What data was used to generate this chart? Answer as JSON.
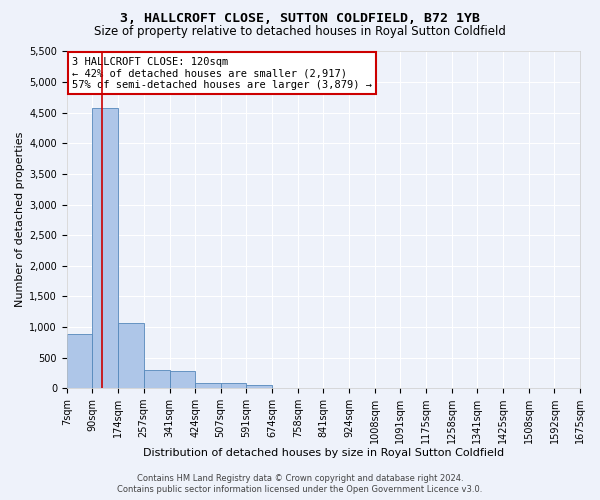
{
  "title_line1": "3, HALLCROFT CLOSE, SUTTON COLDFIELD, B72 1YB",
  "title_line2": "Size of property relative to detached houses in Royal Sutton Coldfield",
  "xlabel": "Distribution of detached houses by size in Royal Sutton Coldfield",
  "ylabel": "Number of detached properties",
  "footer_line1": "Contains HM Land Registry data © Crown copyright and database right 2024.",
  "footer_line2": "Contains public sector information licensed under the Open Government Licence v3.0.",
  "annotation_title": "3 HALLCROFT CLOSE: 120sqm",
  "annotation_line2": "← 42% of detached houses are smaller (2,917)",
  "annotation_line3": "57% of semi-detached houses are larger (3,879) →",
  "bins": [
    7,
    90,
    174,
    257,
    341,
    424,
    507,
    591,
    674,
    758,
    841,
    924,
    1008,
    1091,
    1175,
    1258,
    1341,
    1425,
    1508,
    1592,
    1675
  ],
  "bin_labels": [
    "7sqm",
    "90sqm",
    "174sqm",
    "257sqm",
    "341sqm",
    "424sqm",
    "507sqm",
    "591sqm",
    "674sqm",
    "758sqm",
    "841sqm",
    "924sqm",
    "1008sqm",
    "1091sqm",
    "1175sqm",
    "1258sqm",
    "1341sqm",
    "1425sqm",
    "1508sqm",
    "1592sqm",
    "1675sqm"
  ],
  "counts": [
    880,
    4570,
    1060,
    290,
    280,
    90,
    80,
    55,
    0,
    0,
    0,
    0,
    0,
    0,
    0,
    0,
    0,
    0,
    0,
    0
  ],
  "bar_color": "#aec6e8",
  "bar_edge_color": "#5588bb",
  "vline_color": "#cc0000",
  "vline_x": 120,
  "ylim": [
    0,
    5500
  ],
  "yticks": [
    0,
    500,
    1000,
    1500,
    2000,
    2500,
    3000,
    3500,
    4000,
    4500,
    5000,
    5500
  ],
  "bg_color": "#eef2fa",
  "grid_color": "#ffffff",
  "annotation_box_color": "#ffffff",
  "annotation_box_edge": "#cc0000",
  "title_fontsize": 9.5,
  "subtitle_fontsize": 8.5,
  "ylabel_fontsize": 8,
  "xlabel_fontsize": 8,
  "tick_fontsize": 7,
  "annotation_fontsize": 7.5,
  "footer_fontsize": 6
}
